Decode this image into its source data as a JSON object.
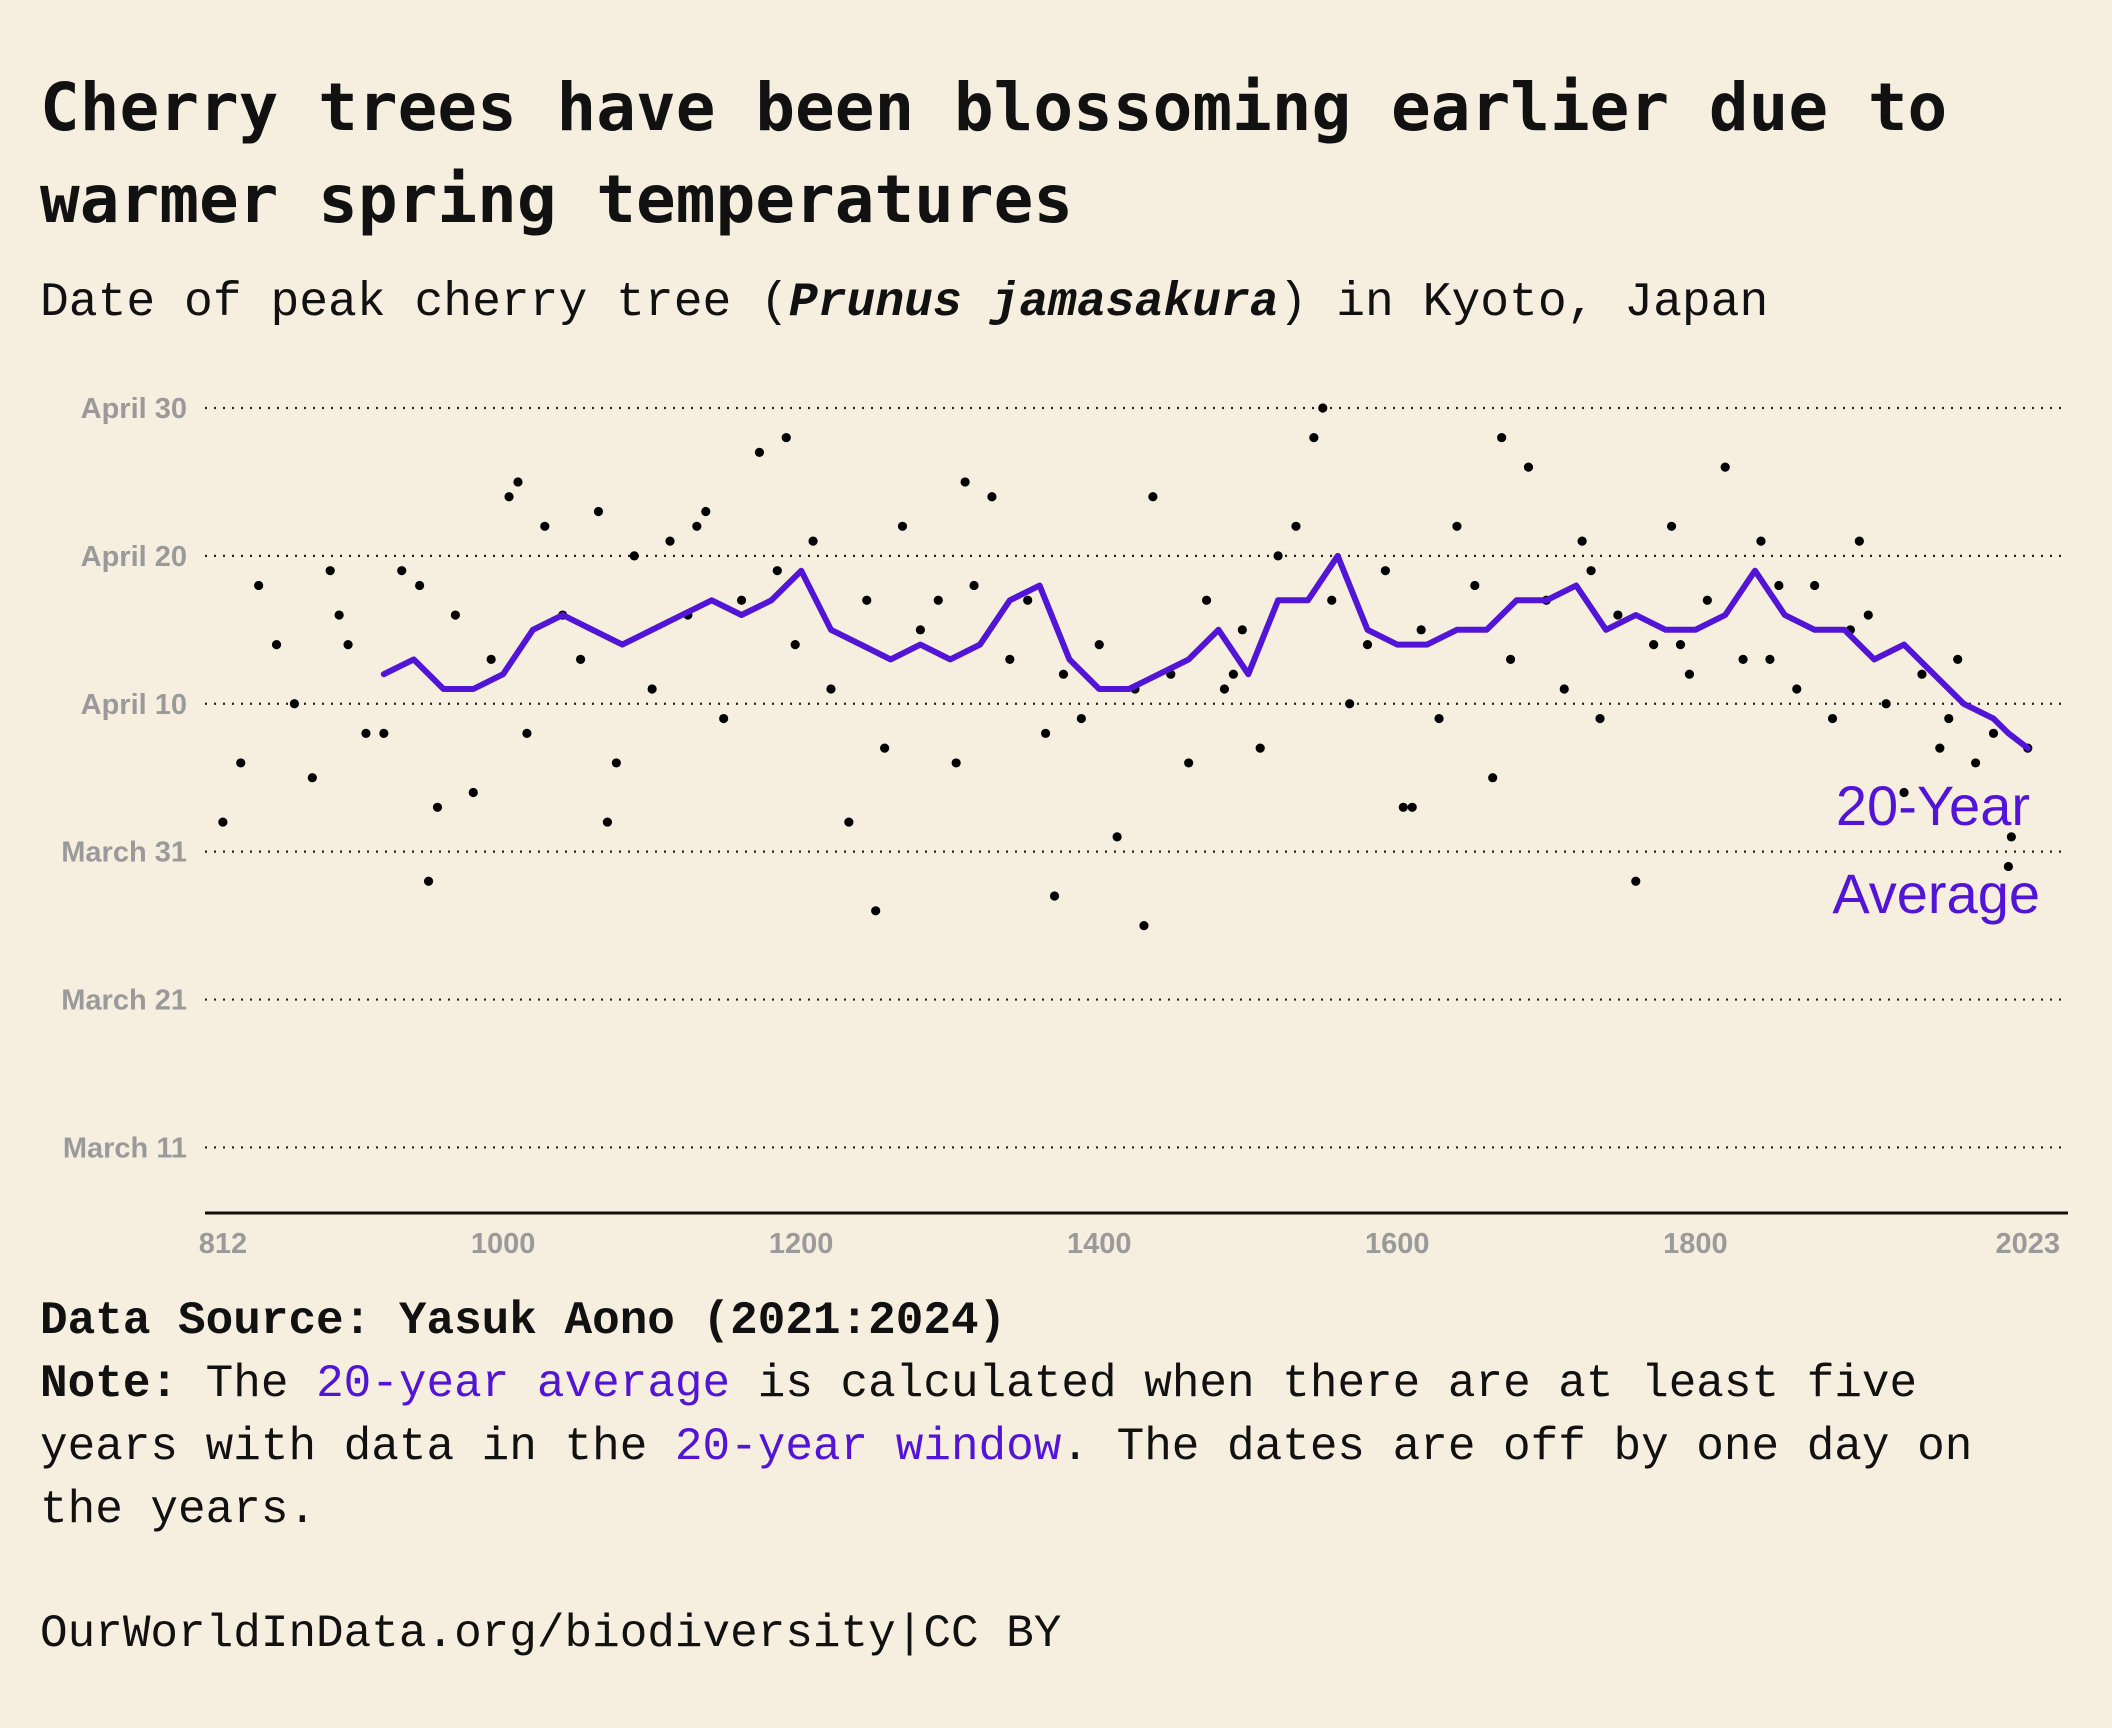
{
  "header": {
    "title": "Cherry trees have been blossoming earlier due to warmer spring temperatures",
    "subtitle_pre": "Date of peak cherry tree (",
    "subtitle_sci": "Prunus jamasakura",
    "subtitle_post": ") in Kyoto, Japan"
  },
  "colors": {
    "background": "#f6efe0",
    "average_line": "#5215d8",
    "points": "#000000",
    "axis_labels": "#9a9a9a"
  },
  "chart_data": {
    "type": "scatter",
    "annotation": [
      "20-Year",
      "Average"
    ],
    "x_ticks": [
      812,
      1000,
      1200,
      1400,
      1600,
      1800,
      2023
    ],
    "y_ticks": [
      "March 11",
      "March 21",
      "March 31",
      "April 10",
      "April 20",
      "April 30"
    ],
    "xlim": [
      800,
      2050
    ],
    "ylim": [
      "March 9",
      "April 30"
    ],
    "grid": "horizontal dotted",
    "series": [
      {
        "kind": "points",
        "x": [
          812,
          824,
          836,
          848,
          860,
          872,
          884,
          896,
          908,
          920,
          932,
          944,
          956,
          968,
          980,
          992,
          1004,
          1016,
          1028,
          1040,
          1052,
          1064,
          1076,
          1088,
          1100,
          1112,
          1124,
          1136,
          1148,
          1160,
          1172,
          1184,
          1196,
          1208,
          1220,
          1232,
          1244,
          1256,
          1268,
          1280,
          1292,
          1304,
          1316,
          1328,
          1340,
          1352,
          1364,
          1376,
          1388,
          1400,
          1412,
          1424,
          1436,
          1448,
          1460,
          1472,
          1484,
          1496,
          1508,
          1520,
          1532,
          1544,
          1556,
          1568,
          1580,
          1592,
          1604,
          1616,
          1628,
          1640,
          1652,
          1664,
          1676,
          1688,
          1700,
          1712,
          1724,
          1736,
          1748,
          1760,
          1772,
          1784,
          1796,
          1808,
          1820,
          1832,
          1844,
          1856,
          1868,
          1880,
          1892,
          1904,
          1916,
          1928,
          1940,
          1952,
          1964,
          1976,
          1988,
          2000,
          2012,
          2023,
          890,
          950,
          1010,
          1070,
          1130,
          1190,
          1250,
          1310,
          1370,
          1430,
          1490,
          1550,
          1610,
          1670,
          1730,
          1790,
          1850,
          1910,
          1970,
          2010
        ],
        "dates": [
          "April 2",
          "April 6",
          "April 18",
          "April 14",
          "April 10",
          "April 5",
          "April 19",
          "April 14",
          "April 8",
          "April 8",
          "April 19",
          "April 18",
          "April 3",
          "April 16",
          "April 4",
          "April 13",
          "April 24",
          "April 8",
          "April 22",
          "April 16",
          "April 13",
          "April 23",
          "April 6",
          "April 20",
          "April 11",
          "April 21",
          "April 16",
          "April 23",
          "April 9",
          "April 17",
          "April 27",
          "April 19",
          "April 14",
          "April 21",
          "April 11",
          "April 2",
          "April 17",
          "April 7",
          "April 22",
          "April 15",
          "April 17",
          "April 6",
          "April 18",
          "April 24",
          "April 13",
          "April 17",
          "April 8",
          "April 12",
          "April 9",
          "April 14",
          "April 1",
          "April 11",
          "April 24",
          "April 12",
          "April 6",
          "April 17",
          "April 11",
          "April 15",
          "April 7",
          "April 20",
          "April 22",
          "April 28",
          "April 17",
          "April 10",
          "April 14",
          "April 19",
          "April 3",
          "April 15",
          "April 9",
          "April 22",
          "April 18",
          "April 5",
          "April 13",
          "April 26",
          "April 17",
          "April 11",
          "April 21",
          "April 9",
          "April 16",
          "March 29",
          "April 14",
          "April 22",
          "April 12",
          "April 17",
          "April 26",
          "April 13",
          "April 21",
          "April 18",
          "April 11",
          "April 18",
          "April 9",
          "April 15",
          "April 16",
          "April 10",
          "April 4",
          "April 12",
          "April 7",
          "April 13",
          "April 6",
          "April 8",
          "April 1",
          "April 7",
          "April 16",
          "March 29",
          "April 25",
          "April 2",
          "April 22",
          "April 28",
          "March 27",
          "April 25",
          "March 28",
          "March 26",
          "April 12",
          "April 30",
          "April 3",
          "April 28",
          "April 19",
          "April 14",
          "April 13",
          "April 21",
          "April 9",
          "March 30"
        ]
      },
      {
        "name": "20-Year Average",
        "kind": "line",
        "x": [
          920,
          940,
          960,
          980,
          1000,
          1020,
          1040,
          1060,
          1080,
          1100,
          1120,
          1140,
          1160,
          1180,
          1200,
          1220,
          1240,
          1260,
          1280,
          1300,
          1320,
          1340,
          1360,
          1380,
          1400,
          1420,
          1440,
          1460,
          1480,
          1500,
          1520,
          1540,
          1560,
          1580,
          1600,
          1620,
          1640,
          1660,
          1680,
          1700,
          1720,
          1740,
          1760,
          1780,
          1800,
          1820,
          1840,
          1860,
          1880,
          1900,
          1920,
          1940,
          1960,
          1980,
          2000,
          2010,
          2023
        ],
        "dates": [
          "April 12",
          "April 13",
          "April 11",
          "April 11",
          "April 12",
          "April 15",
          "April 16",
          "April 15",
          "April 14",
          "April 15",
          "April 16",
          "April 17",
          "April 16",
          "April 17",
          "April 19",
          "April 15",
          "April 14",
          "April 13",
          "April 14",
          "April 13",
          "April 14",
          "April 17",
          "April 18",
          "April 13",
          "April 11",
          "April 11",
          "April 12",
          "April 13",
          "April 15",
          "April 12",
          "April 17",
          "April 17",
          "April 20",
          "April 15",
          "April 14",
          "April 14",
          "April 15",
          "April 15",
          "April 17",
          "April 17",
          "April 18",
          "April 15",
          "April 16",
          "April 15",
          "April 15",
          "April 16",
          "April 19",
          "April 16",
          "April 15",
          "April 15",
          "April 13",
          "April 14",
          "April 12",
          "April 10",
          "April 9",
          "April 8",
          "April 7"
        ]
      }
    ]
  },
  "footer": {
    "source": "Data Source: Yasuk Aono (2021:2024)",
    "note_label": "Note:",
    "note_a": " The ",
    "note_hl1": "20-year average",
    "note_b": " is calculated when there are at least five years with data in the ",
    "note_hl2": "20-year window",
    "note_c": ". The dates are off by one day on the years.",
    "credit": "OurWorldInData.org/biodiversity|CC BY"
  }
}
